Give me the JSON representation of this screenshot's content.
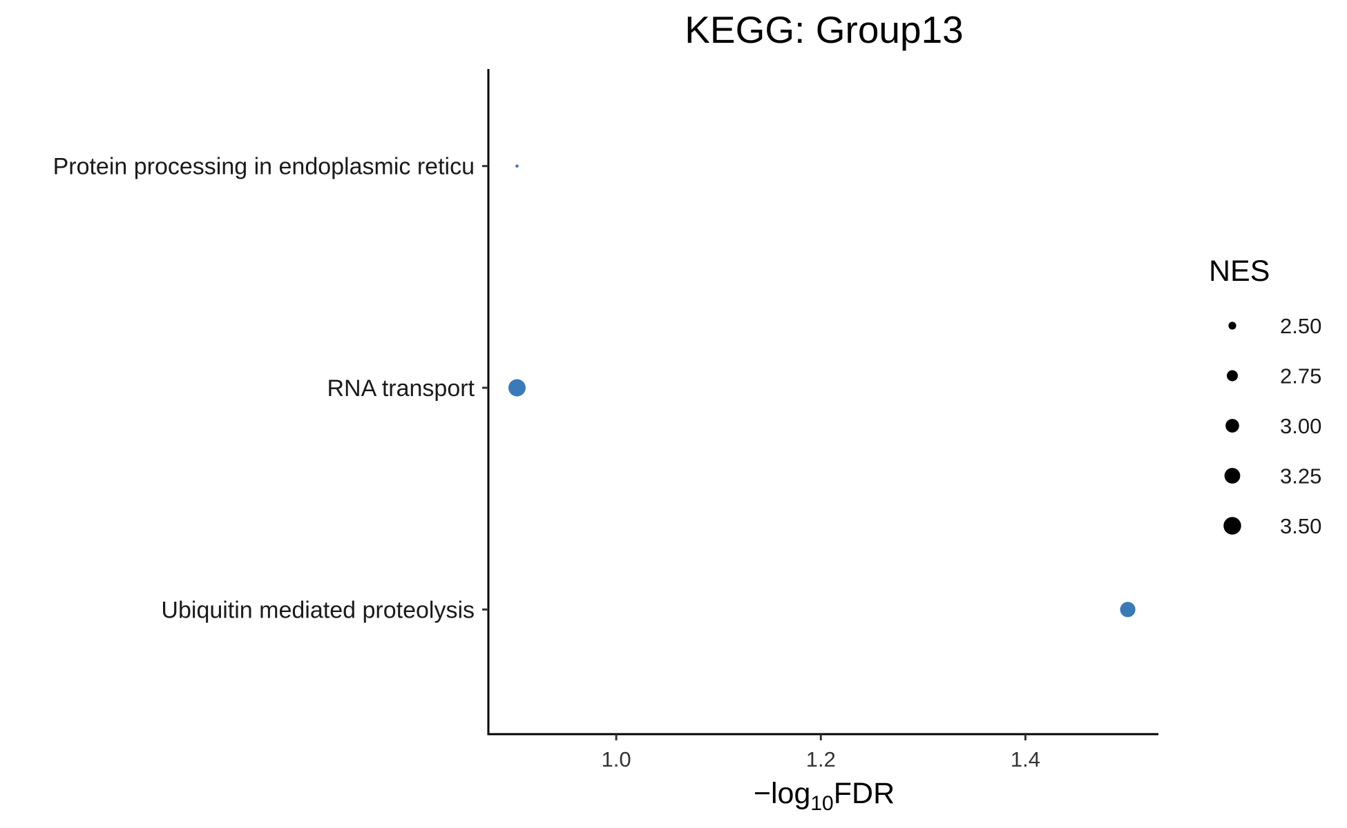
{
  "chart_data": {
    "type": "scatter",
    "title": "KEGG: Group13",
    "xlabel_prefix": "−log",
    "xlabel_sub": "10",
    "xlabel_suffix": "FDR",
    "xlim": [
      0.875,
      1.53
    ],
    "x_ticks": [
      1.0,
      1.2,
      1.4
    ],
    "x_tick_labels": [
      "1.0",
      "1.2",
      "1.4"
    ],
    "categories": [
      "Protein processing in endoplasmic reticu",
      "RNA transport",
      "Ubiquitin mediated proteolysis"
    ],
    "points": [
      {
        "category": "Protein processing in endoplasmic reticu",
        "x": 0.903,
        "nes": 2.3
      },
      {
        "category": "RNA transport",
        "x": 0.903,
        "nes": 3.45
      },
      {
        "category": "Ubiquitin mediated proteolysis",
        "x": 1.5,
        "nes": 3.2
      }
    ],
    "point_color": "#3a7ab8",
    "size_legend": {
      "title": "NES",
      "values": [
        2.5,
        2.75,
        3.0,
        3.25,
        3.5
      ],
      "labels": [
        "2.50",
        "2.75",
        "3.00",
        "3.25",
        "3.50"
      ],
      "color": "#000000"
    },
    "grid": false
  }
}
